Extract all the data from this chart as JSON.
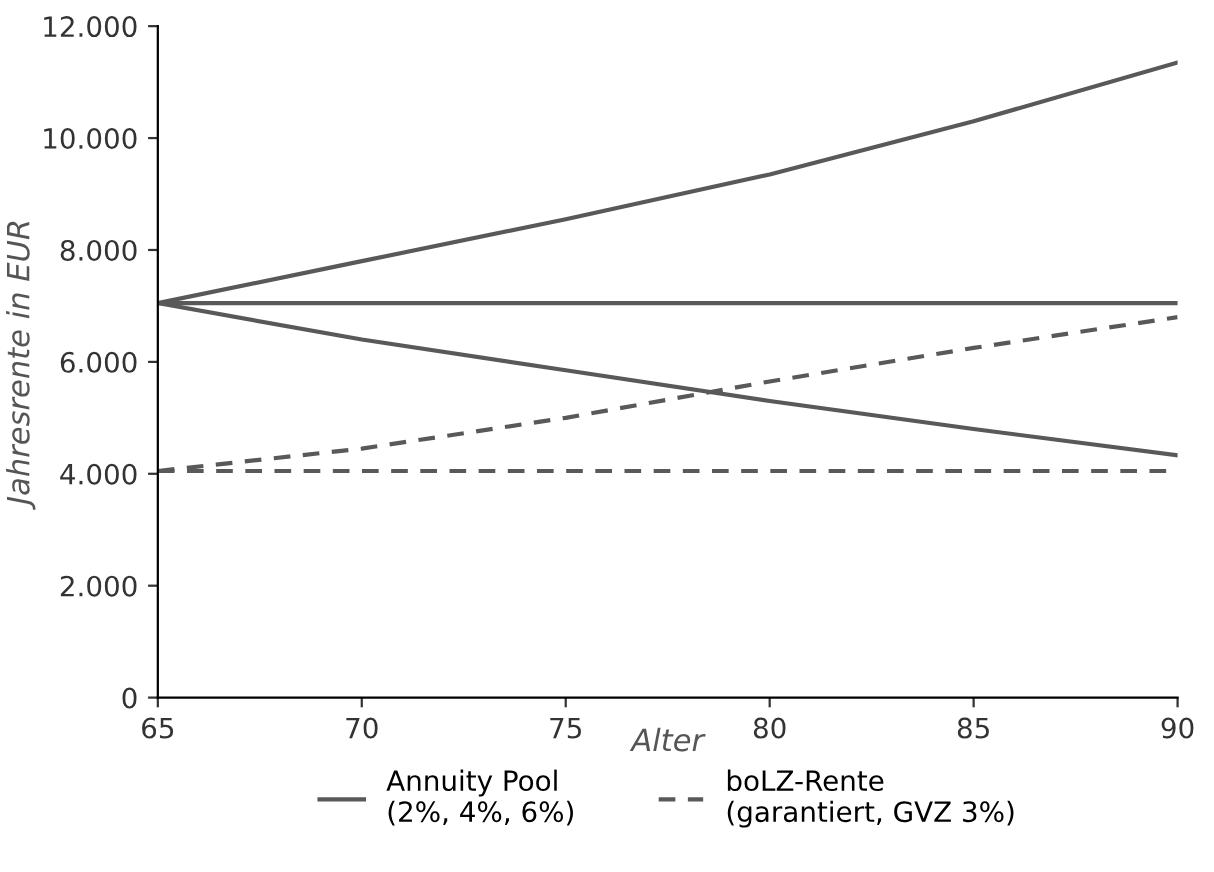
{
  "chart_data": {
    "type": "line",
    "xlabel": "Alter",
    "ylabel": "Jahresrente in EUR",
    "x": [
      65,
      70,
      75,
      80,
      85,
      90
    ],
    "series": [
      {
        "name": "Annuity Pool\n(2%, 4%, 6%)",
        "color": "#595959",
        "line_style": "solid",
        "values": [
          7050,
          7800,
          8550,
          9350,
          10300,
          11350
        ]
      },
      {
        "color": "#595959",
        "line_style": "solid",
        "values": [
          7050,
          7050,
          7050,
          7050,
          7050,
          7050
        ]
      },
      {
        "color": "#595959",
        "line_style": "solid",
        "values": [
          7050,
          6400,
          5850,
          5300,
          4800,
          4330
        ]
      },
      {
        "name": "boLZ-Rente\n(garantiert, GVZ 3%)",
        "color": "#595959",
        "line_style": "dashed",
        "values": [
          4050,
          4450,
          5000,
          5650,
          6250,
          6800
        ]
      },
      {
        "color": "#595959",
        "line_style": "dashed",
        "values": [
          4050,
          4050,
          4050,
          4050,
          4050,
          4050
        ]
      }
    ],
    "xlim": [
      65,
      90
    ],
    "xticks": [
      65,
      70,
      75,
      80,
      85,
      90
    ],
    "ylim": [
      0,
      12000
    ],
    "yticks": [
      0,
      {
        "value": 2000,
        "label": "2.000"
      },
      {
        "value": 4000,
        "label": "4.000"
      },
      {
        "value": 6000,
        "label": "6.000"
      },
      {
        "value": 8000,
        "label": "8.000"
      },
      {
        "value": 10000,
        "label": "10.000"
      },
      {
        "value": 12000,
        "label": "12.000"
      }
    ],
    "grid": false,
    "legend": "bottom",
    "marker": "none"
  }
}
